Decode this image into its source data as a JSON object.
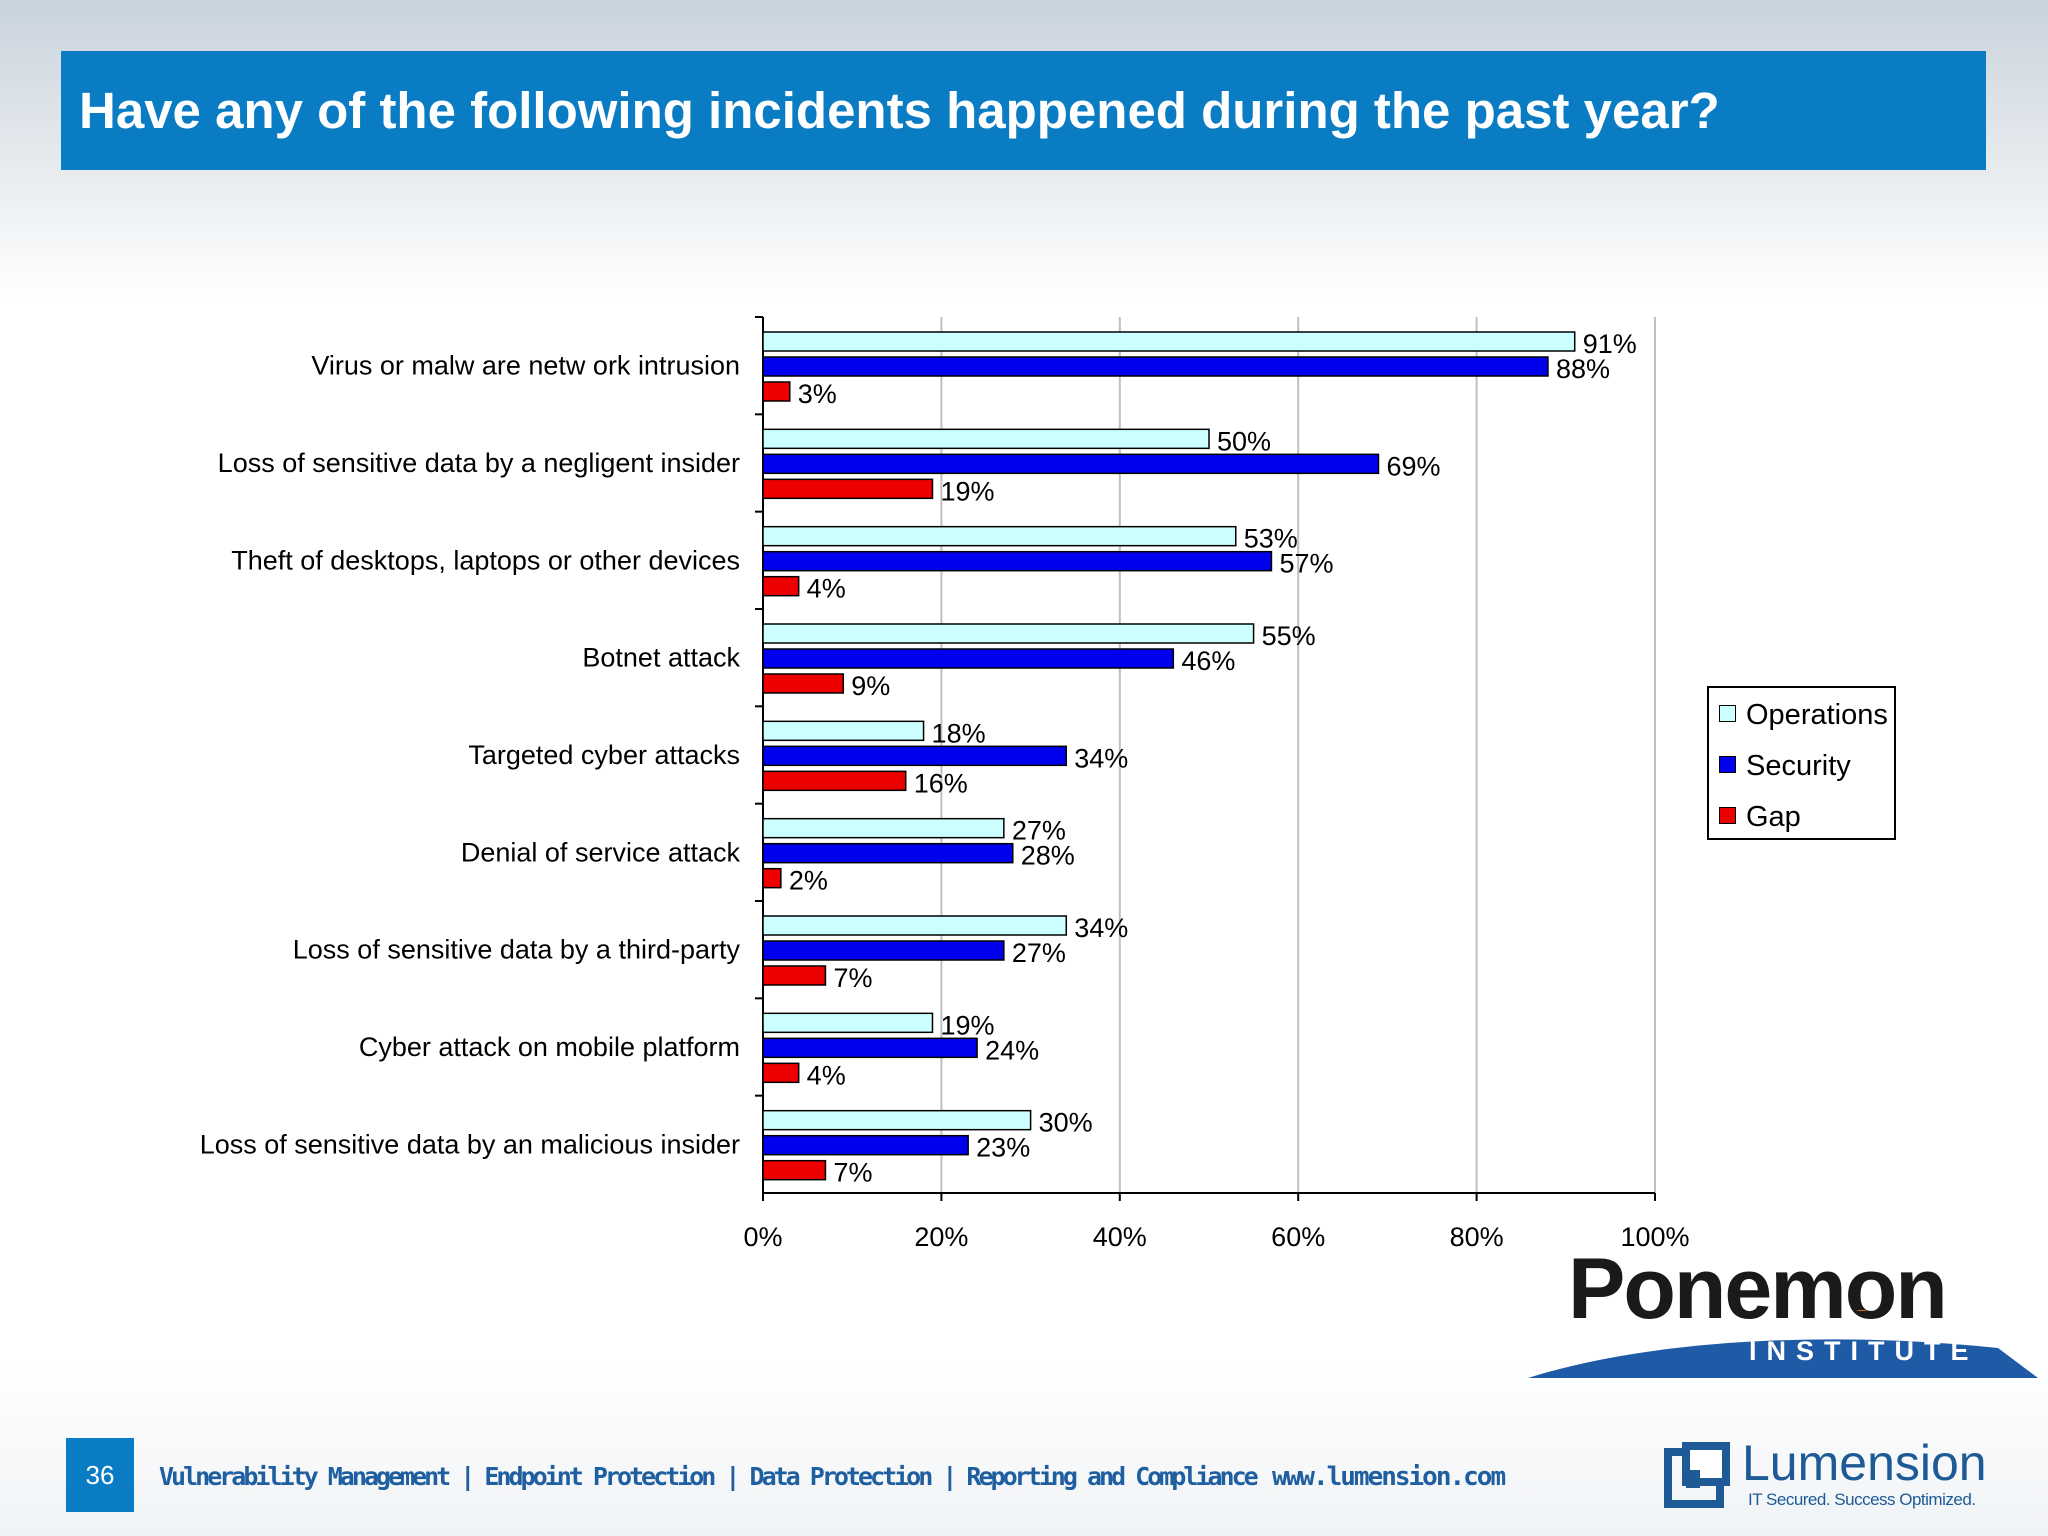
{
  "slide": {
    "title": "Have any of the following incidents happened during the past year?",
    "page_number": "36",
    "footer_links": "Vulnerability Management | Endpoint Protection | Data Protection | Reporting and Compliance",
    "footer_url": "www.lumension.com"
  },
  "logos": {
    "ponemon_word": "Ponemon",
    "ponemon_sub": "INSTITUTE",
    "lumension_word": "Lumension",
    "lumension_tagline": "IT Secured. Success Optimized."
  },
  "colors": {
    "title_bar": "#0a7cc4",
    "operations": "#ccffff",
    "security": "#0000ee",
    "gap": "#ee0000",
    "grid": "#c0c0c0"
  },
  "chart_data": {
    "type": "bar",
    "orientation": "horizontal",
    "categories": [
      "Virus or malw are netw ork intrusion",
      "Loss of sensitive data by a negligent insider",
      "Theft of desktops, laptops or other devices",
      "Botnet attack",
      "Targeted cyber attacks",
      "Denial of service attack",
      "Loss of sensitive data by a third-party",
      "Cyber attack on mobile platform",
      "Loss of sensitive data by an malicious insider"
    ],
    "series": [
      {
        "name": "Operations",
        "values": [
          91,
          50,
          53,
          55,
          18,
          27,
          34,
          19,
          30
        ]
      },
      {
        "name": "Security",
        "values": [
          88,
          69,
          57,
          46,
          34,
          28,
          27,
          24,
          23
        ]
      },
      {
        "name": "Gap",
        "values": [
          3,
          19,
          4,
          9,
          16,
          2,
          7,
          4,
          7
        ]
      }
    ],
    "xlim": [
      0,
      100
    ],
    "xticks": [
      "0%",
      "20%",
      "40%",
      "60%",
      "80%",
      "100%"
    ],
    "value_suffix": "%",
    "grid": "vertical",
    "legend_position": "right"
  }
}
